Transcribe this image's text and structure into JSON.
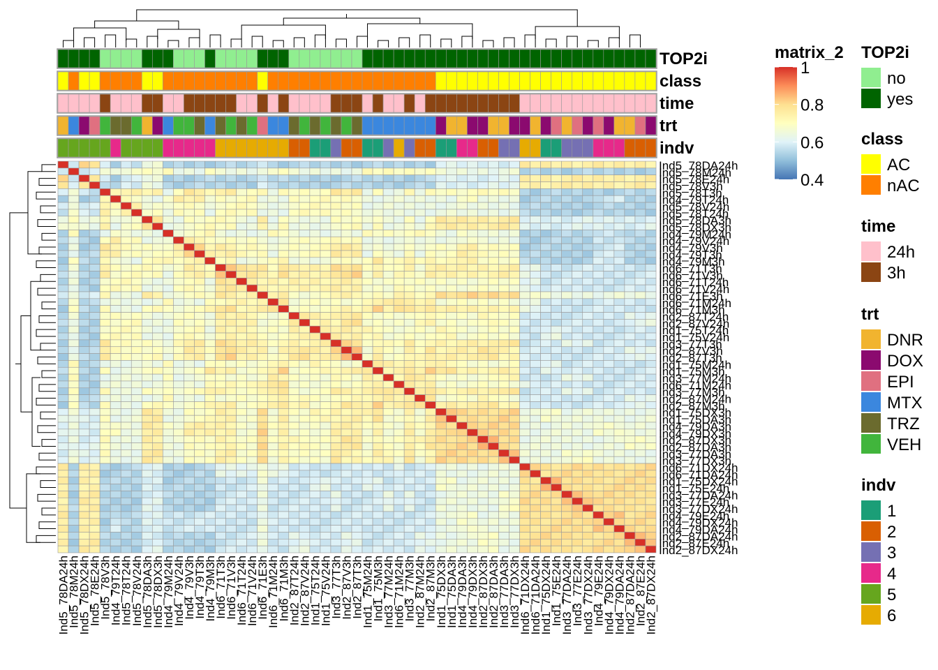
{
  "chart_data": {
    "type": "heatmap",
    "title": "",
    "matrix_legend": {
      "name": "matrix_2",
      "ticks": [
        "1",
        "0.8",
        "0.6",
        "0.4"
      ],
      "range": [
        0.4,
        1.0
      ],
      "colors": [
        "#4575b4",
        "#91bfdb",
        "#e0f3f8",
        "#ffffbf",
        "#fee090",
        "#fc8d59",
        "#d73027"
      ]
    },
    "annotation_names": [
      "TOP2i",
      "class",
      "time",
      "trt",
      "indv"
    ],
    "legends": [
      {
        "title": "TOP2i",
        "items": [
          {
            "label": "no",
            "color": "#90ee90"
          },
          {
            "label": "yes",
            "color": "#006400"
          }
        ]
      },
      {
        "title": "class",
        "items": [
          {
            "label": "AC",
            "color": "#ffff00"
          },
          {
            "label": "nAC",
            "color": "#ff7f00"
          }
        ]
      },
      {
        "title": "time",
        "items": [
          {
            "label": "24h",
            "color": "#ffc0cb"
          },
          {
            "label": "3h",
            "color": "#8b4513"
          }
        ]
      },
      {
        "title": "trt",
        "items": [
          {
            "label": "DNR",
            "color": "#f1b42f"
          },
          {
            "label": "DOX",
            "color": "#8b0a6f"
          },
          {
            "label": "EPI",
            "color": "#e07080"
          },
          {
            "label": "MTX",
            "color": "#3b87de"
          },
          {
            "label": "TRZ",
            "color": "#6b6b2e"
          },
          {
            "label": "VEH",
            "color": "#41b53c"
          }
        ]
      },
      {
        "title": "indv",
        "items": [
          {
            "label": "1",
            "color": "#1b9e77"
          },
          {
            "label": "2",
            "color": "#d95f02"
          },
          {
            "label": "3",
            "color": "#7570b3"
          },
          {
            "label": "4",
            "color": "#e7298a"
          },
          {
            "label": "5",
            "color": "#66a61e"
          },
          {
            "label": "6",
            "color": "#e6ab02"
          }
        ]
      }
    ],
    "row_labels": [
      "Ind5_78DA24h",
      "Ind5_78M24h",
      "Ind5_78E24h",
      "Ind5_78V3h",
      "Ind5_78T3h",
      "Ind4_79T24h",
      "Ind5_78V24h",
      "Ind5_78T24h",
      "Ind5_78DA3h",
      "Ind5_78DX3h",
      "Ind4_79M24h",
      "Ind4_79V24h",
      "Ind4_79V3h",
      "Ind4_79T3h",
      "Ind4_79M3h",
      "Ind6_71T3h",
      "Ind6_71V3h",
      "Ind6_71T24h",
      "Ind6_71V24h",
      "Ind6_71E3h",
      "Ind6_71M24h",
      "Ind6_71M3h",
      "Ind2_87T24h",
      "Ind2_87V24h",
      "Ind1_75T24h",
      "Ind1_75V24h",
      "Ind3_77T3h",
      "Ind2_87V3h",
      "Ind2_87T3h",
      "Ind1_75M24h",
      "Ind1_75M3h",
      "Ind3_77M24h",
      "Ind6_71M24h",
      "Ind3_77M3h",
      "Ind2_87M24h",
      "Ind2_87M3h",
      "Ind1_75DX3h",
      "Ind1_75DA3h",
      "Ind4_79DA3h",
      "Ind4_79DX3h",
      "Ind2_87DX3h",
      "Ind2_87DA3h",
      "Ind3_77DA3h",
      "Ind3_77DX3h",
      "Ind6_71DX24h",
      "Ind6_71DA24h",
      "Ind1_75DX24h",
      "Ind1_75E24h",
      "Ind3_77DA24h",
      "Ind3_77E24h",
      "Ind3_77DX24h",
      "Ind4_79E24h",
      "Ind4_79DX24h",
      "Ind4_79DA24h",
      "Ind2_87DA24h",
      "Ind2_87E24h",
      "Ind2_87DX24h"
    ],
    "col_labels": [
      "Ind5_78DA24h",
      "Ind5_78M24h",
      "Ind5_78DX24h",
      "Ind5_78E24h",
      "Ind5_78V3h",
      "Ind4_79T24h",
      "Ind5_78T24h",
      "Ind5_78V24h",
      "Ind5_78DA3h",
      "Ind5_78DX3h",
      "Ind4_79M24h",
      "Ind4_79V24h",
      "Ind4_79V3h",
      "Ind4_79T3h",
      "Ind4_79M3h",
      "Ind6_71T3h",
      "Ind6_71V3h",
      "Ind6_71T24h",
      "Ind6_71V24h",
      "Ind6_71E3h",
      "Ind6_71M24h",
      "Ind6_71M3h",
      "Ind2_87T24h",
      "Ind2_87V24h",
      "Ind1_75T24h",
      "Ind1_75V24h",
      "Ind3_77T3h",
      "Ind2_87V3h",
      "Ind2_87T3h",
      "Ind1_75M24h",
      "Ind1_75M3h",
      "Ind3_77M24h",
      "Ind6_71M24h",
      "Ind3_77M3h",
      "Ind2_87M24h",
      "Ind2_87M3h",
      "Ind1_75DX3h",
      "Ind1_75DA3h",
      "Ind4_79DA3h",
      "Ind4_79DX3h",
      "Ind2_87DX3h",
      "Ind2_87DA3h",
      "Ind3_77DA3h",
      "Ind3_77DX3h",
      "Ind6_71DX24h",
      "Ind6_71DA24h",
      "Ind1_75DX24h",
      "Ind1_75E24h",
      "Ind3_77DA24h",
      "Ind3_77E24h",
      "Ind3_77DX24h",
      "Ind4_79E24h",
      "Ind4_79DX24h",
      "Ind4_79DA24h",
      "Ind2_87DA24h",
      "Ind2_87E24h",
      "Ind2_87DX24h"
    ]
  }
}
